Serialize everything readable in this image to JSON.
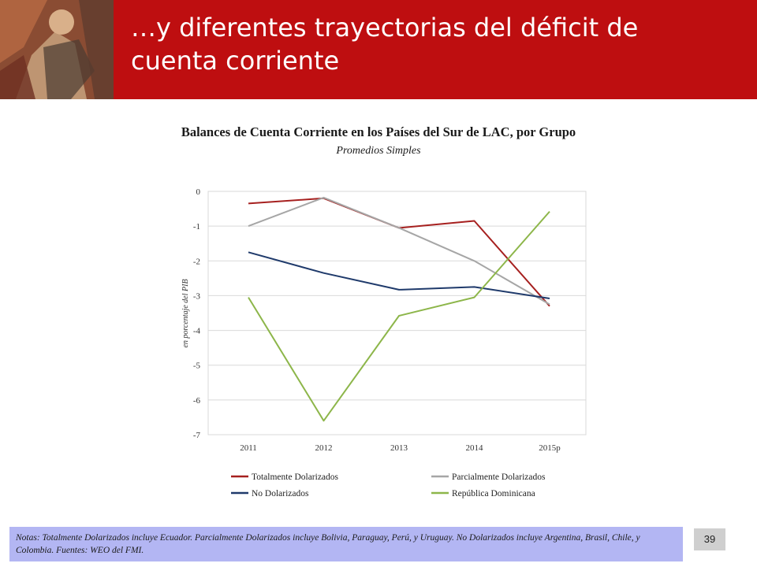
{
  "header": {
    "title": "…y diferentes trayectorias del déficit de cuenta corriente"
  },
  "chart_data": {
    "type": "line",
    "title": "Balances de Cuenta Corriente en los Países del Sur de LAC, por Grupo",
    "subtitle": "Promedios Simples",
    "xlabel": "",
    "ylabel": "en porcentaje del PIB",
    "categories": [
      "2011",
      "2012",
      "2013",
      "2014",
      "2015p"
    ],
    "ylim": [
      -7,
      0
    ],
    "yticks": [
      "0",
      "-1",
      "-2",
      "-3",
      "-4",
      "-5",
      "-6",
      "-7"
    ],
    "grid": true,
    "legend_position": "bottom",
    "series": [
      {
        "name": "Totalmente Dolarizados",
        "color": "#a6201f",
        "values": [
          -0.35,
          -0.2,
          -1.05,
          -0.85,
          -3.3
        ]
      },
      {
        "name": "Parcialmente Dolarizados",
        "color": "#a6a6a6",
        "values": [
          -1.0,
          -0.18,
          -1.05,
          -2.0,
          -3.25
        ]
      },
      {
        "name": "No Dolarizados",
        "color": "#1f3a6b",
        "values": [
          -1.75,
          -2.35,
          -2.83,
          -2.75,
          -3.08
        ]
      },
      {
        "name": "República Dominicana",
        "color": "#8db64a",
        "values": [
          -3.05,
          -6.6,
          -3.58,
          -3.05,
          -0.58
        ]
      }
    ]
  },
  "notes": "Notas: Totalmente Dolarizados incluye Ecuador. Parcialmente Dolarizados incluye Bolivia, Paraguay, Perú, y Uruguay. No  Dolarizados incluye Argentina, Brasil, Chile, y Colombia. Fuentes: WEO del FMI.",
  "page_number": "39"
}
